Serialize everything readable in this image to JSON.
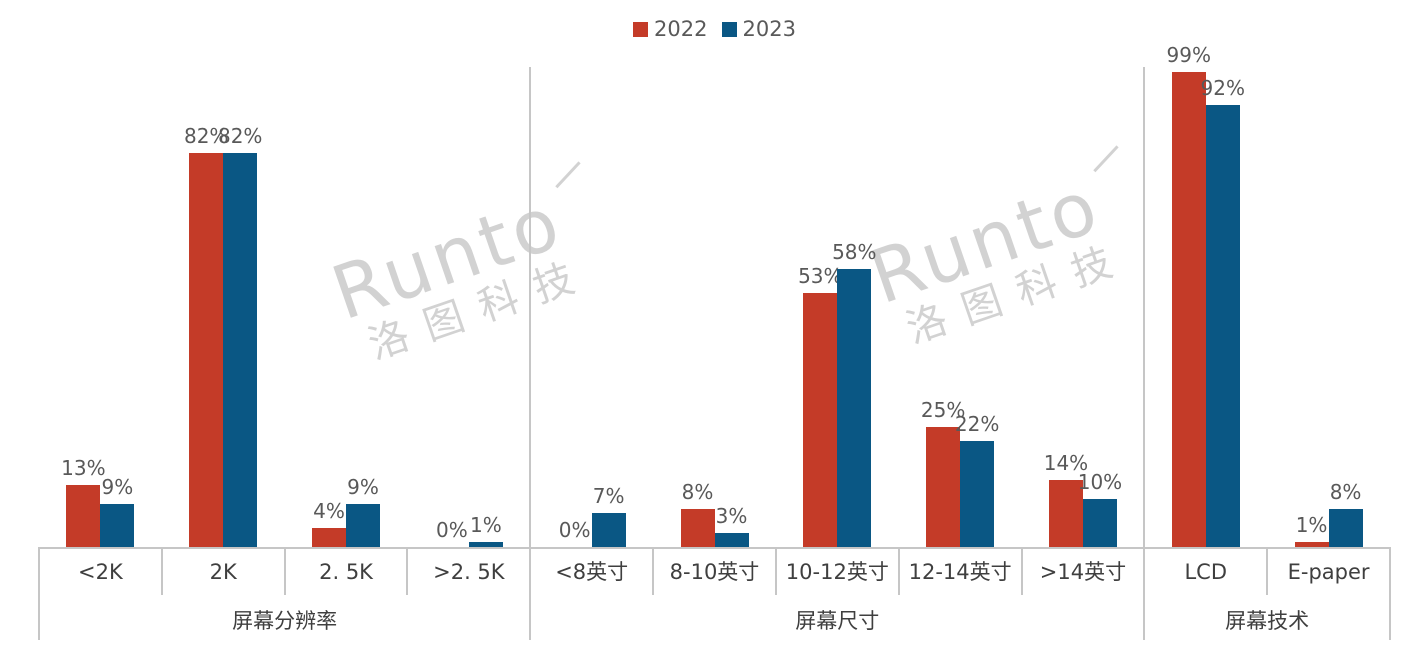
{
  "legend": {
    "items": [
      {
        "label": "2022",
        "color": "#c43b28"
      },
      {
        "label": "2023",
        "color": "#0a5784"
      }
    ]
  },
  "watermark": {
    "line1": "Runto",
    "line2": "洛图科技"
  },
  "chart_data": {
    "type": "bar",
    "title": "",
    "unit": "%",
    "ylim": [
      0,
      100
    ],
    "grid": false,
    "legend_position": "top-center",
    "series_names": [
      "2022",
      "2023"
    ],
    "colors": {
      "2022": "#c43b28",
      "2023": "#0a5784"
    },
    "data_label_format": "{value}%",
    "groups": [
      {
        "label": "屏幕分辨率",
        "categories": [
          "<2K",
          "2K",
          "2. 5K",
          ">2. 5K"
        ],
        "series": [
          {
            "name": "2022",
            "values": [
              13,
              82,
              4,
              0
            ]
          },
          {
            "name": "2023",
            "values": [
              9,
              82,
              9,
              1
            ]
          }
        ]
      },
      {
        "label": "屏幕尺寸",
        "categories": [
          "<8英寸",
          "8-10英寸",
          "10-12英寸",
          "12-14英寸",
          ">14英寸"
        ],
        "series": [
          {
            "name": "2022",
            "values": [
              0,
              8,
              53,
              25,
              14
            ]
          },
          {
            "name": "2023",
            "values": [
              7,
              3,
              58,
              22,
              10
            ]
          }
        ]
      },
      {
        "label": "屏幕技术",
        "categories": [
          "LCD",
          "E-paper"
        ],
        "series": [
          {
            "name": "2022",
            "values": [
              99,
              1
            ]
          },
          {
            "name": "2023",
            "values": [
              92,
              8
            ]
          }
        ]
      }
    ]
  }
}
